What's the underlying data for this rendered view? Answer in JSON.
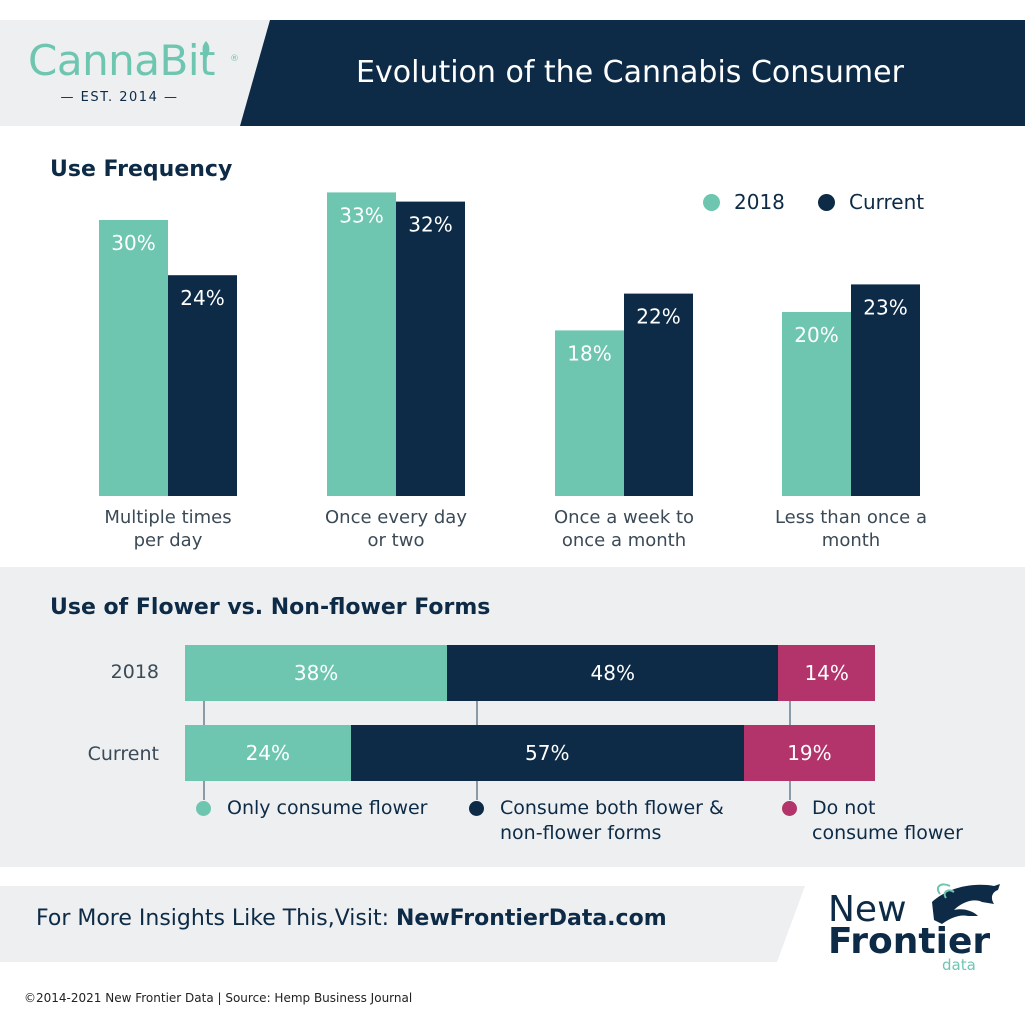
{
  "header": {
    "logo_name": "CannaBit",
    "logo_est": "— EST. 2014 —",
    "title": "Evolution of the Cannabis Consumer"
  },
  "colors": {
    "teal": "#6ec6b1",
    "navy": "#0d2b46",
    "magenta": "#b3336b",
    "panel_grey": "#eeeff1"
  },
  "section1": {
    "title": "Use Frequency"
  },
  "section2": {
    "title": "Use of Flower vs. Non-flower Forms"
  },
  "chart_data": [
    {
      "type": "bar",
      "title": "Use Frequency",
      "categories": [
        "Multiple times per day",
        "Once every day or two",
        "Once a week to once a month",
        "Less than once a month"
      ],
      "category_lines": [
        [
          "Multiple times",
          "per day"
        ],
        [
          "Once every day",
          "or two"
        ],
        [
          "Once a week to",
          "once a month"
        ],
        [
          "Less than once a",
          "month"
        ]
      ],
      "series": [
        {
          "name": "2018",
          "values": [
            30,
            33,
            18,
            20
          ],
          "labels": [
            "30%",
            "33%",
            "18%",
            "20%"
          ],
          "color": "#6ec6b1"
        },
        {
          "name": "Current",
          "values": [
            24,
            32,
            22,
            23
          ],
          "labels": [
            "24%",
            "32%",
            "22%",
            "23%"
          ],
          "color": "#0d2b46"
        }
      ],
      "legend_position": "top-right",
      "unit": "%"
    },
    {
      "type": "bar",
      "subtype": "stacked-horizontal",
      "title": "Use of Flower vs. Non-flower Forms",
      "rows": [
        "2018",
        "Current"
      ],
      "series": [
        {
          "name": "Only consume flower",
          "values": [
            38,
            24
          ],
          "labels": [
            "38%",
            "24%"
          ],
          "color": "#6ec6b1"
        },
        {
          "name": "Consume both flower & non-flower forms",
          "name_lines": [
            "Consume both flower &",
            "non-flower forms"
          ],
          "values": [
            48,
            57
          ],
          "labels": [
            "48%",
            "57%"
          ],
          "color": "#0d2b46"
        },
        {
          "name": "Do not consume flower",
          "name_lines": [
            "Do not",
            "consume flower"
          ],
          "values": [
            14,
            19
          ],
          "labels": [
            "14%",
            "19%"
          ],
          "color": "#b3336b"
        }
      ],
      "unit": "%"
    }
  ],
  "footer": {
    "cta_text": "For More Insights Like This,Visit: ",
    "cta_link": "NewFrontierData.com",
    "brand_new": "New",
    "brand_frontier": "Frontier",
    "brand_data": "data",
    "copyright": "©2014-2021 New Frontier Data | Source: Hemp Business Journal"
  }
}
